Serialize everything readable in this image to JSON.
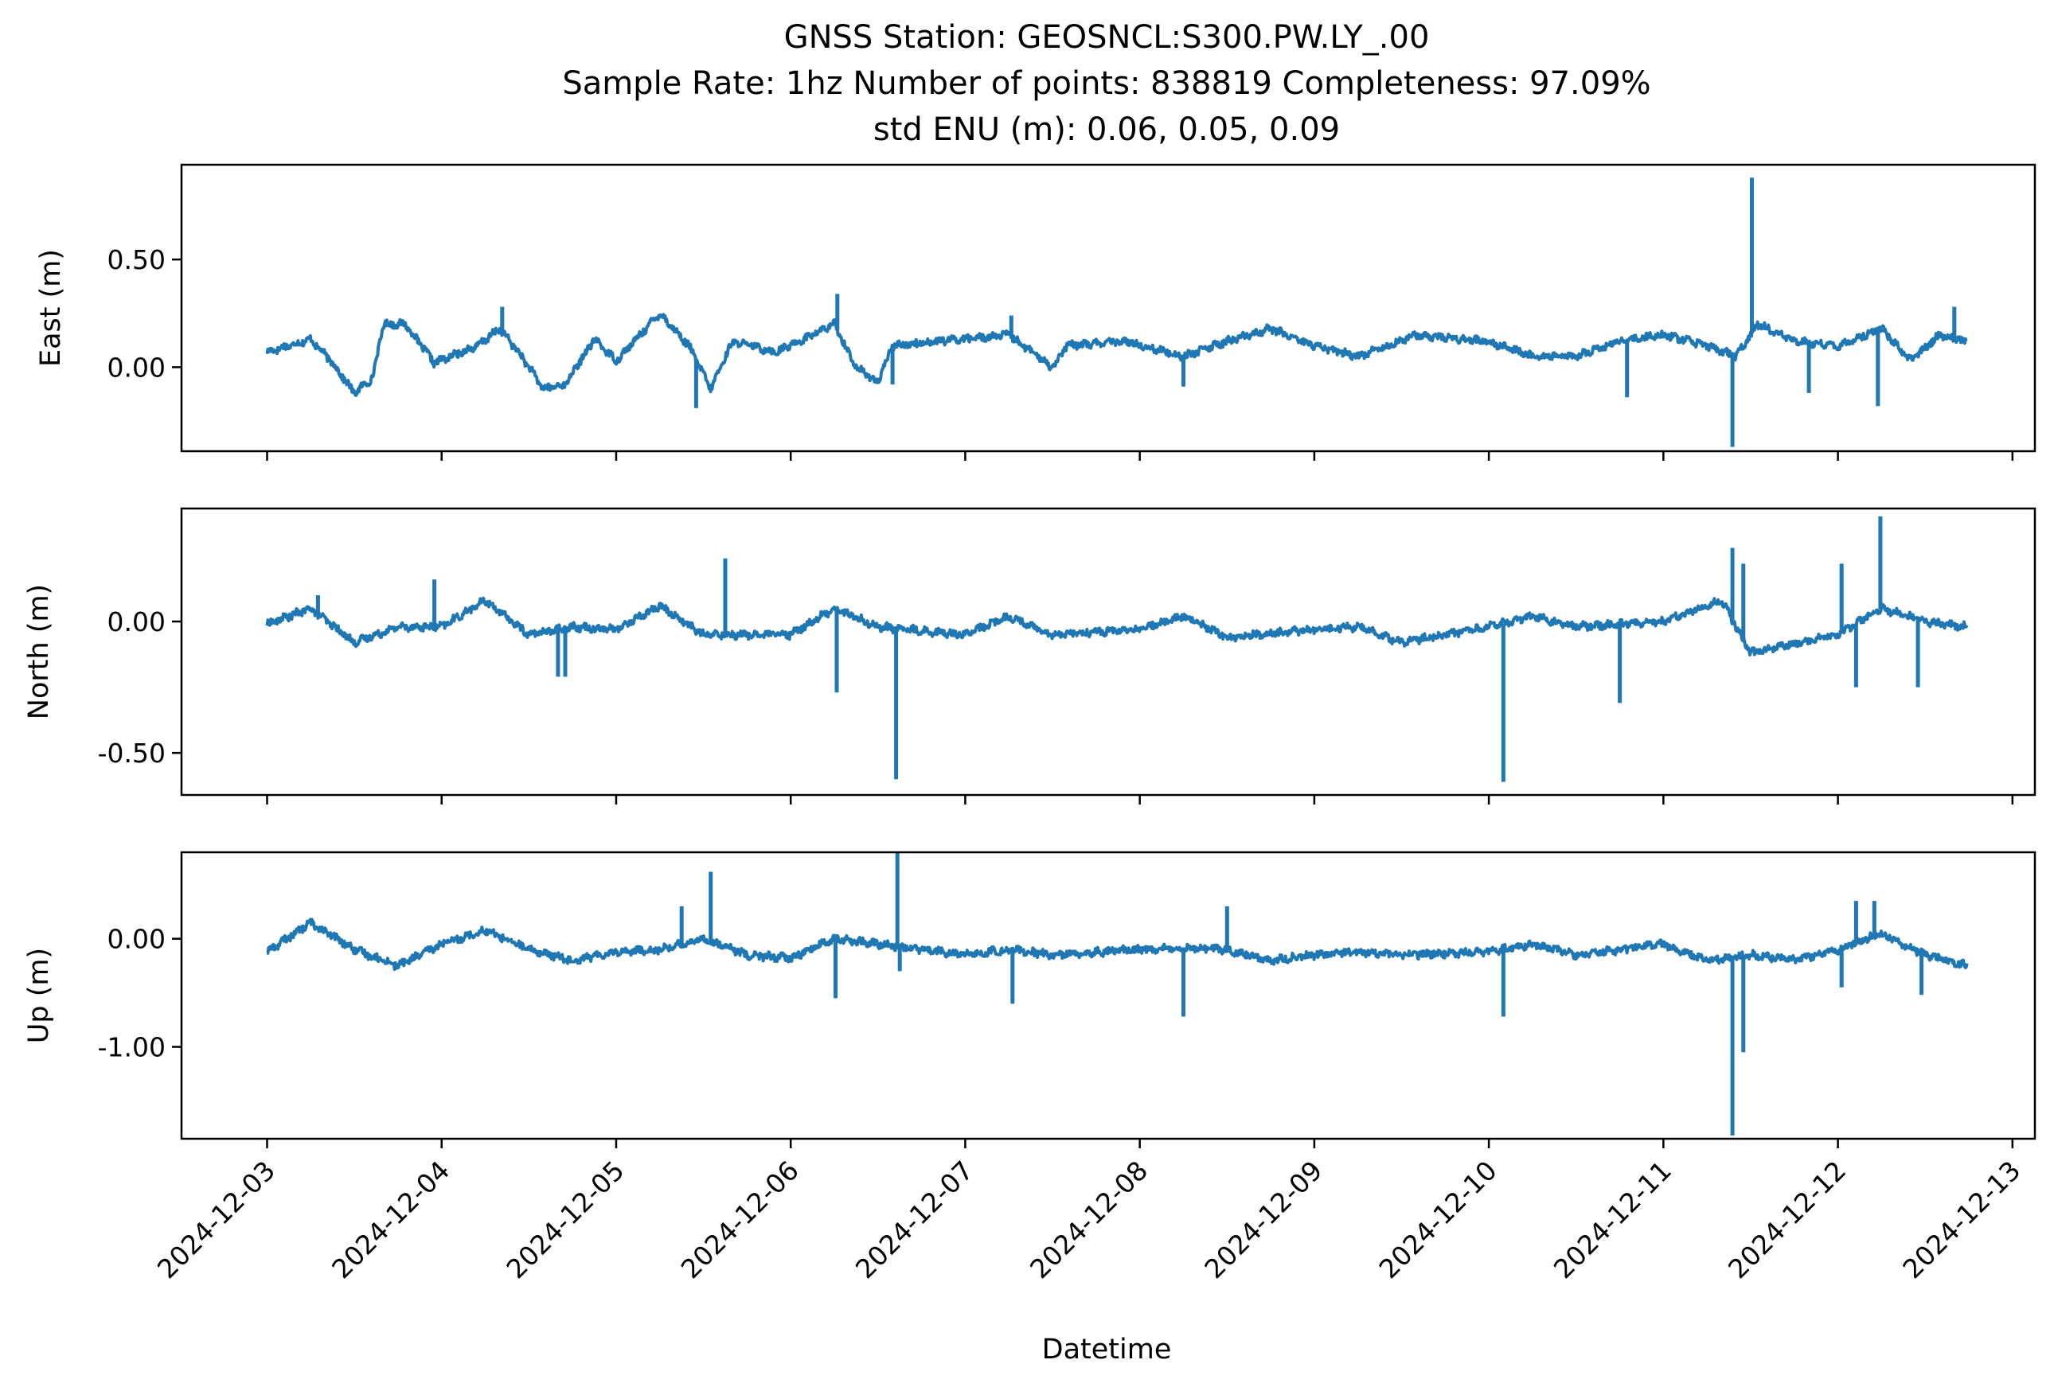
{
  "chart_data": {
    "type": "line",
    "title_lines": [
      "GNSS Station: GEOSNCL:S300.PW.LY_.00",
      "Sample Rate: 1hz   Number of points: 838819    Completeness:  97.09%",
      "std ENU (m):  0.06, 0.05, 0.09"
    ],
    "xlabel": "Datetime",
    "x_tick_labels": [
      "2024-12-03",
      "2024-12-04",
      "2024-12-05",
      "2024-12-06",
      "2024-12-07",
      "2024-12-08",
      "2024-12-09",
      "2024-12-10",
      "2024-12-11",
      "2024-12-12",
      "2024-12-13"
    ],
    "xlim": [
      "2024-12-02T12:14",
      "2024-12-13T03:05"
    ],
    "x_range": [
      "2024-12-03T00:00",
      "2024-12-12T17:45"
    ],
    "color": "#1f77b4",
    "panels": [
      {
        "ylabel": "East (m)",
        "yticks": [
          0.0,
          0.5
        ],
        "ytick_labels": [
          "0.00",
          "0.50"
        ],
        "ylim": [
          -0.39,
          0.94
        ],
        "baseline": [
          [
            "2024-12-03T00:00",
            0.07
          ],
          [
            "2024-12-03T06:00",
            0.13
          ],
          [
            "2024-12-03T09:00",
            0.02
          ],
          [
            "2024-12-03T12:00",
            -0.12
          ],
          [
            "2024-12-03T14:30",
            -0.05
          ],
          [
            "2024-12-03T16:00",
            0.2
          ],
          [
            "2024-12-03T19:00",
            0.2
          ],
          [
            "2024-12-03T23:00",
            0.02
          ],
          [
            "2024-12-04T05:00",
            0.1
          ],
          [
            "2024-12-04T08:00",
            0.18
          ],
          [
            "2024-12-04T11:00",
            0.05
          ],
          [
            "2024-12-04T14:00",
            -0.1
          ],
          [
            "2024-12-04T17:00",
            -0.08
          ],
          [
            "2024-12-04T21:00",
            0.13
          ],
          [
            "2024-12-05T00:00",
            0.03
          ],
          [
            "2024-12-05T06:00",
            0.25
          ],
          [
            "2024-12-05T10:00",
            0.1
          ],
          [
            "2024-12-05T13:00",
            -0.1
          ],
          [
            "2024-12-05T16:00",
            0.12
          ],
          [
            "2024-12-05T22:00",
            0.07
          ],
          [
            "2024-12-06T06:00",
            0.2
          ],
          [
            "2024-12-06T09:00",
            0.0
          ],
          [
            "2024-12-06T12:00",
            -0.07
          ],
          [
            "2024-12-06T14:00",
            0.1
          ],
          [
            "2024-12-06T20:00",
            0.12
          ],
          [
            "2024-12-07T06:00",
            0.15
          ],
          [
            "2024-12-07T12:00",
            0.0
          ],
          [
            "2024-12-07T14:00",
            0.1
          ],
          [
            "2024-12-07T22:00",
            0.12
          ],
          [
            "2024-12-08T06:00",
            0.05
          ],
          [
            "2024-12-08T12:00",
            0.12
          ],
          [
            "2024-12-08T18:00",
            0.18
          ],
          [
            "2024-12-09T00:00",
            0.1
          ],
          [
            "2024-12-09T06:00",
            0.05
          ],
          [
            "2024-12-09T14:00",
            0.15
          ],
          [
            "2024-12-10T00:00",
            0.12
          ],
          [
            "2024-12-10T06:00",
            0.05
          ],
          [
            "2024-12-10T12:00",
            0.05
          ],
          [
            "2024-12-10T18:00",
            0.12
          ],
          [
            "2024-12-11T00:00",
            0.15
          ],
          [
            "2024-12-11T06:00",
            0.1
          ],
          [
            "2024-12-11T10:00",
            0.05
          ],
          [
            "2024-12-11T13:00",
            0.2
          ],
          [
            "2024-12-11T18:00",
            0.12
          ],
          [
            "2024-12-12T00:00",
            0.1
          ],
          [
            "2024-12-12T06:00",
            0.18
          ],
          [
            "2024-12-12T10:00",
            0.03
          ],
          [
            "2024-12-12T14:00",
            0.15
          ],
          [
            "2024-12-12T17:45",
            0.12
          ]
        ],
        "spikes": [
          [
            "2024-12-06T06:25",
            0.34
          ],
          [
            "2024-12-04T08:20",
            0.28
          ],
          [
            "2024-12-05T11:00",
            -0.19
          ],
          [
            "2024-12-05T13:00",
            -0.1
          ],
          [
            "2024-12-06T14:00",
            -0.08
          ],
          [
            "2024-12-07T06:20",
            0.24
          ],
          [
            "2024-12-08T06:00",
            -0.09
          ],
          [
            "2024-12-10T00:40",
            0.1
          ],
          [
            "2024-12-10T19:00",
            -0.14
          ],
          [
            "2024-12-11T09:30",
            -0.37
          ],
          [
            "2024-12-11T12:10",
            0.88
          ],
          [
            "2024-12-11T20:00",
            -0.12
          ],
          [
            "2024-12-12T05:30",
            -0.18
          ],
          [
            "2024-12-12T16:00",
            0.28
          ]
        ]
      },
      {
        "ylabel": "North (m)",
        "yticks": [
          0.0,
          -0.5
        ],
        "ytick_labels": [
          "0.00",
          "-0.50"
        ],
        "ylim": [
          -0.66,
          0.43
        ],
        "baseline": [
          [
            "2024-12-03T00:00",
            -0.01
          ],
          [
            "2024-12-03T06:00",
            0.05
          ],
          [
            "2024-12-03T12:00",
            -0.08
          ],
          [
            "2024-12-03T18:00",
            -0.02
          ],
          [
            "2024-12-04T00:00",
            -0.02
          ],
          [
            "2024-12-04T06:00",
            0.08
          ],
          [
            "2024-12-04T12:00",
            -0.05
          ],
          [
            "2024-12-04T18:00",
            -0.02
          ],
          [
            "2024-12-05T00:00",
            -0.03
          ],
          [
            "2024-12-05T06:00",
            0.06
          ],
          [
            "2024-12-05T12:00",
            -0.05
          ],
          [
            "2024-12-06T00:00",
            -0.05
          ],
          [
            "2024-12-06T06:00",
            0.05
          ],
          [
            "2024-12-06T12:00",
            -0.02
          ],
          [
            "2024-12-07T00:00",
            -0.05
          ],
          [
            "2024-12-07T06:00",
            0.02
          ],
          [
            "2024-12-07T12:00",
            -0.05
          ],
          [
            "2024-12-08T00:00",
            -0.03
          ],
          [
            "2024-12-08T06:00",
            0.02
          ],
          [
            "2024-12-08T12:00",
            -0.06
          ],
          [
            "2024-12-09T00:00",
            -0.03
          ],
          [
            "2024-12-09T06:00",
            -0.02
          ],
          [
            "2024-12-09T12:00",
            -0.08
          ],
          [
            "2024-12-10T00:00",
            -0.02
          ],
          [
            "2024-12-10T06:00",
            0.02
          ],
          [
            "2024-12-10T12:00",
            -0.02
          ],
          [
            "2024-12-11T00:00",
            0.0
          ],
          [
            "2024-12-11T08:00",
            0.08
          ],
          [
            "2024-12-11T12:00",
            -0.12
          ],
          [
            "2024-12-12T00:00",
            -0.05
          ],
          [
            "2024-12-12T06:00",
            0.05
          ],
          [
            "2024-12-12T12:00",
            0.0
          ],
          [
            "2024-12-12T17:45",
            -0.02
          ]
        ],
        "spikes": [
          [
            "2024-12-03T07:00",
            0.1
          ],
          [
            "2024-12-03T23:00",
            0.16
          ],
          [
            "2024-12-04T16:00",
            -0.21
          ],
          [
            "2024-12-04T17:00",
            -0.21
          ],
          [
            "2024-12-05T15:00",
            0.24
          ],
          [
            "2024-12-06T06:20",
            -0.27
          ],
          [
            "2024-12-06T14:30",
            -0.6
          ],
          [
            "2024-12-10T02:00",
            -0.61
          ],
          [
            "2024-12-10T18:00",
            -0.31
          ],
          [
            "2024-12-11T09:30",
            0.28
          ],
          [
            "2024-12-11T11:00",
            0.22
          ],
          [
            "2024-12-12T00:30",
            0.22
          ],
          [
            "2024-12-12T02:30",
            -0.25
          ],
          [
            "2024-12-12T05:50",
            0.4
          ],
          [
            "2024-12-12T11:00",
            -0.25
          ]
        ]
      },
      {
        "ylabel": "Up (m)",
        "yticks": [
          0.0,
          -1.0
        ],
        "ytick_labels": [
          "0.00",
          "-1.00"
        ],
        "ylim": [
          -1.85,
          0.8
        ],
        "baseline": [
          [
            "2024-12-03T00:00",
            -0.12
          ],
          [
            "2024-12-03T06:00",
            0.15
          ],
          [
            "2024-12-03T12:00",
            -0.1
          ],
          [
            "2024-12-03T18:00",
            -0.25
          ],
          [
            "2024-12-04T00:00",
            -0.05
          ],
          [
            "2024-12-04T06:00",
            0.08
          ],
          [
            "2024-12-04T12:00",
            -0.1
          ],
          [
            "2024-12-04T18:00",
            -0.2
          ],
          [
            "2024-12-05T00:00",
            -0.12
          ],
          [
            "2024-12-05T06:00",
            -0.1
          ],
          [
            "2024-12-05T12:00",
            0.0
          ],
          [
            "2024-12-05T18:00",
            -0.15
          ],
          [
            "2024-12-06T00:00",
            -0.18
          ],
          [
            "2024-12-06T06:00",
            0.0
          ],
          [
            "2024-12-06T12:00",
            -0.05
          ],
          [
            "2024-12-07T00:00",
            -0.15
          ],
          [
            "2024-12-07T06:00",
            -0.1
          ],
          [
            "2024-12-07T12:00",
            -0.15
          ],
          [
            "2024-12-08T00:00",
            -0.1
          ],
          [
            "2024-12-08T06:00",
            -0.08
          ],
          [
            "2024-12-08T12:00",
            -0.1
          ],
          [
            "2024-12-08T18:00",
            -0.2
          ],
          [
            "2024-12-09T00:00",
            -0.15
          ],
          [
            "2024-12-09T06:00",
            -0.12
          ],
          [
            "2024-12-09T12:00",
            -0.15
          ],
          [
            "2024-12-10T00:00",
            -0.12
          ],
          [
            "2024-12-10T06:00",
            -0.05
          ],
          [
            "2024-12-10T12:00",
            -0.15
          ],
          [
            "2024-12-11T00:00",
            -0.05
          ],
          [
            "2024-12-11T06:00",
            -0.2
          ],
          [
            "2024-12-11T12:00",
            -0.15
          ],
          [
            "2024-12-11T18:00",
            -0.2
          ],
          [
            "2024-12-12T00:00",
            -0.1
          ],
          [
            "2024-12-12T06:00",
            0.05
          ],
          [
            "2024-12-12T12:00",
            -0.15
          ],
          [
            "2024-12-12T17:45",
            -0.25
          ]
        ],
        "spikes": [
          [
            "2024-12-05T09:00",
            0.3
          ],
          [
            "2024-12-05T13:00",
            0.62
          ],
          [
            "2024-12-06T06:10",
            -0.55
          ],
          [
            "2024-12-06T14:40",
            0.8
          ],
          [
            "2024-12-06T15:00",
            -0.3
          ],
          [
            "2024-12-07T06:30",
            -0.6
          ],
          [
            "2024-12-08T06:00",
            -0.72
          ],
          [
            "2024-12-08T12:00",
            0.3
          ],
          [
            "2024-12-10T02:00",
            -0.72
          ],
          [
            "2024-12-11T09:30",
            -1.82
          ],
          [
            "2024-12-11T11:00",
            -1.05
          ],
          [
            "2024-12-12T00:30",
            -0.45
          ],
          [
            "2024-12-12T02:30",
            0.35
          ],
          [
            "2024-12-12T05:00",
            0.35
          ],
          [
            "2024-12-12T11:30",
            -0.52
          ]
        ]
      }
    ]
  }
}
